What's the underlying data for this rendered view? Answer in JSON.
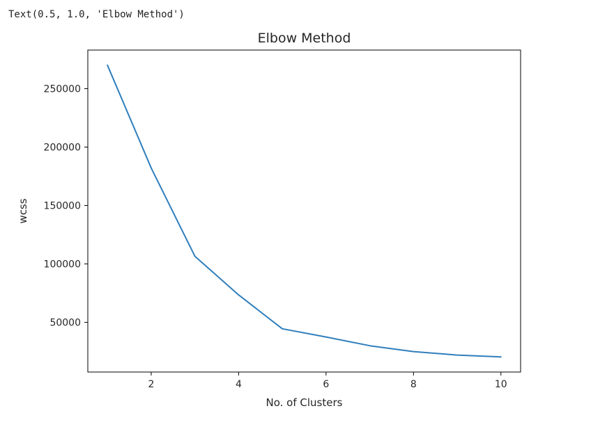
{
  "cell_output": {
    "text": "Text(0.5, 1.0, 'Elbow Method')"
  },
  "chart_data": {
    "type": "line",
    "title": "Elbow Method",
    "xlabel": "No. of Clusters",
    "ylabel": "wcss",
    "xlim": [
      0.55,
      10.45
    ],
    "ylim": [
      7500,
      283000
    ],
    "x_ticks": [
      2,
      4,
      6,
      8,
      10
    ],
    "x_tick_labels": [
      "2",
      "4",
      "6",
      "8",
      "10"
    ],
    "y_ticks": [
      50000,
      100000,
      150000,
      200000,
      250000
    ],
    "y_tick_labels": [
      "50000",
      "100000",
      "150000",
      "200000",
      "250000"
    ],
    "grid": false,
    "series": [
      {
        "color": "#2f7ebc",
        "x": [
          1,
          2,
          3,
          4,
          5,
          6,
          7,
          8,
          9,
          10
        ],
        "y": [
          270000,
          182000,
          106500,
          73500,
          44500,
          37500,
          30000,
          25000,
          22000,
          20500
        ]
      }
    ]
  }
}
